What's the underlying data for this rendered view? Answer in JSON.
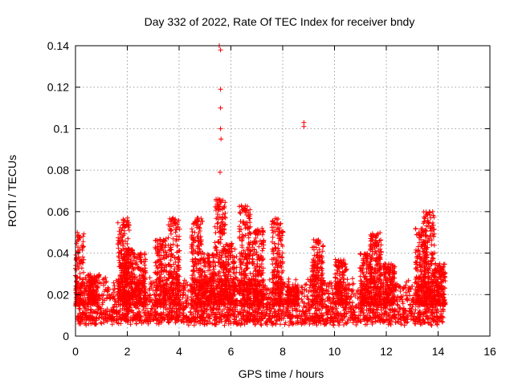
{
  "chart_data": {
    "type": "scatter",
    "title": "Day 332 of 2022, Rate Of TEC Index for receiver bndy",
    "xlabel": "GPS time / hours",
    "ylabel": "ROTI / TECUs",
    "xlim": [
      0,
      16
    ],
    "ylim": [
      0,
      0.14
    ],
    "xticks": [
      0,
      2,
      4,
      6,
      8,
      10,
      12,
      14,
      16
    ],
    "yticks": [
      0,
      0.02,
      0.04,
      0.06,
      0.08,
      0.1,
      0.12,
      0.14
    ],
    "xtick_labels": [
      "0",
      "2",
      "4",
      "6",
      "8",
      "10",
      "12",
      "14",
      "16"
    ],
    "ytick_labels": [
      "0",
      "0.02",
      "0.04",
      "0.06",
      "0.08",
      "0.1",
      "0.12",
      "0.14"
    ],
    "grid": true,
    "marker": "+",
    "color": "#ff0000",
    "series": [
      {
        "name": "ROTI",
        "x_range": [
          0,
          14.2
        ],
        "baseline_band": [
          0.005,
          0.025
        ],
        "bursts": [
          {
            "x": 0.1,
            "peak": 0.05
          },
          {
            "x": 0.7,
            "peak": 0.03
          },
          {
            "x": 1.85,
            "peak": 0.057
          },
          {
            "x": 2.05,
            "peak": 0.042
          },
          {
            "x": 2.5,
            "peak": 0.04
          },
          {
            "x": 3.3,
            "peak": 0.047
          },
          {
            "x": 3.8,
            "peak": 0.057
          },
          {
            "x": 4.7,
            "peak": 0.057
          },
          {
            "x": 5.15,
            "peak": 0.04
          },
          {
            "x": 5.6,
            "peak": 0.066
          },
          {
            "x": 6.0,
            "peak": 0.045
          },
          {
            "x": 6.55,
            "peak": 0.063
          },
          {
            "x": 7.05,
            "peak": 0.052
          },
          {
            "x": 7.8,
            "peak": 0.057
          },
          {
            "x": 8.4,
            "peak": 0.025
          },
          {
            "x": 9.35,
            "peak": 0.047
          },
          {
            "x": 10.25,
            "peak": 0.037
          },
          {
            "x": 11.2,
            "peak": 0.04
          },
          {
            "x": 11.6,
            "peak": 0.05
          },
          {
            "x": 12.1,
            "peak": 0.035
          },
          {
            "x": 13.35,
            "peak": 0.052
          },
          {
            "x": 13.65,
            "peak": 0.06
          },
          {
            "x": 14.05,
            "peak": 0.035
          }
        ],
        "outliers": [
          {
            "x": 5.55,
            "y": 0.14
          },
          {
            "x": 5.6,
            "y": 0.138
          },
          {
            "x": 5.6,
            "y": 0.119
          },
          {
            "x": 5.6,
            "y": 0.11
          },
          {
            "x": 5.6,
            "y": 0.1
          },
          {
            "x": 5.62,
            "y": 0.095
          },
          {
            "x": 5.58,
            "y": 0.079
          },
          {
            "x": 8.82,
            "y": 0.103
          },
          {
            "x": 8.82,
            "y": 0.101
          }
        ]
      }
    ]
  }
}
